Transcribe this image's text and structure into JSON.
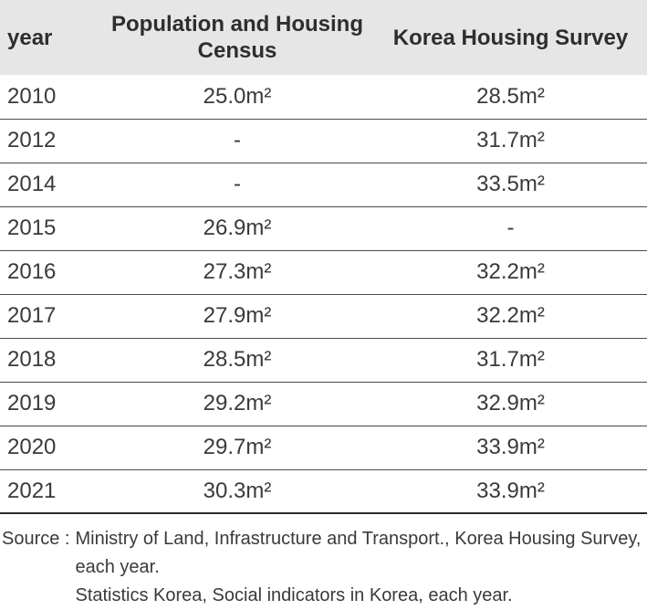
{
  "table": {
    "headers": {
      "year": "year",
      "census": "Population and Housing Census",
      "survey": "Korea Housing Survey"
    },
    "rows": [
      {
        "year": "2010",
        "census": "25.0m²",
        "survey": "28.5m²"
      },
      {
        "year": "2012",
        "census": "-",
        "survey": "31.7m²"
      },
      {
        "year": "2014",
        "census": "-",
        "survey": "33.5m²"
      },
      {
        "year": "2015",
        "census": "26.9m²",
        "survey": "-"
      },
      {
        "year": "2016",
        "census": "27.3m²",
        "survey": "32.2m²"
      },
      {
        "year": "2017",
        "census": "27.9m²",
        "survey": "32.2m²"
      },
      {
        "year": "2018",
        "census": "28.5m²",
        "survey": "31.7m²"
      },
      {
        "year": "2019",
        "census": "29.2m²",
        "survey": "32.9m²"
      },
      {
        "year": "2020",
        "census": "29.7m²",
        "survey": "33.9m²"
      },
      {
        "year": "2021",
        "census": "30.3m²",
        "survey": "33.9m²"
      }
    ]
  },
  "source": {
    "label": "Source :",
    "lines": [
      "Ministry of Land, Infrastructure and Transport., Korea Housing Survey, each year.",
      "Statistics Korea, Social indicators in Korea, each year."
    ]
  }
}
